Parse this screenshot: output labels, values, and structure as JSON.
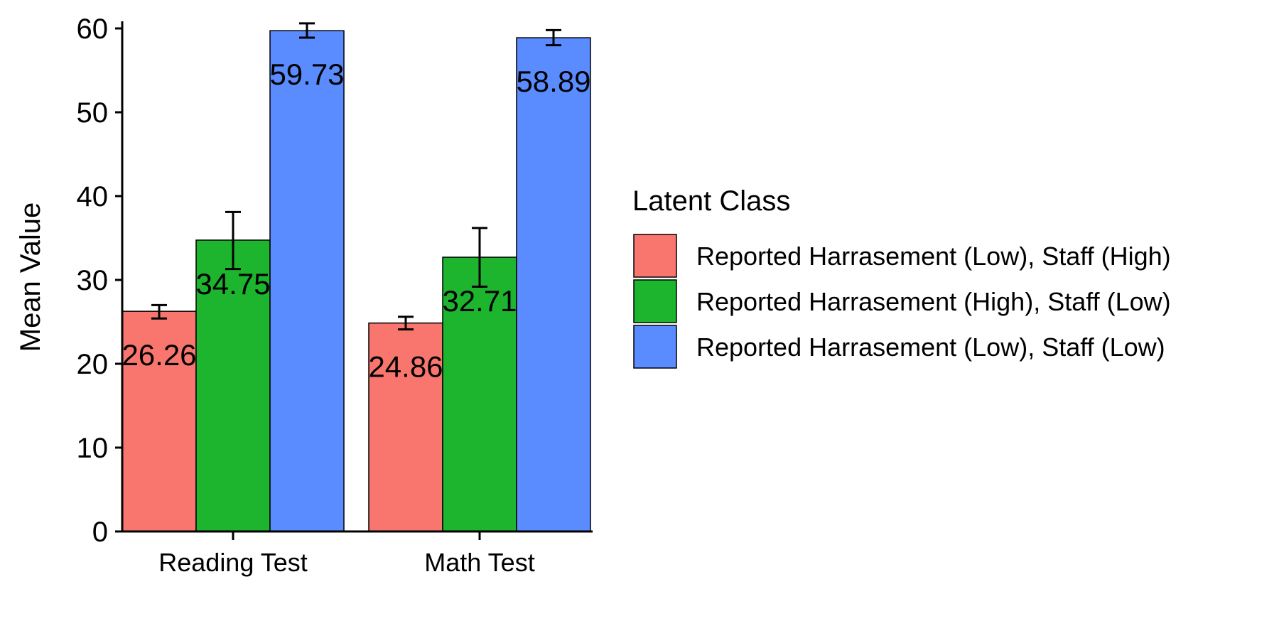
{
  "chart_data": {
    "type": "bar",
    "title": "",
    "xlabel": "",
    "ylabel": "Mean Value",
    "categories": [
      "Reading Test",
      "Math Test"
    ],
    "ylim": [
      0,
      60
    ],
    "yticks": [
      0,
      10,
      20,
      30,
      40,
      50,
      60
    ],
    "grid": false,
    "legend": {
      "title": "Latent Class",
      "placement": "right"
    },
    "series": [
      {
        "name": "Reported Harrasement (Low), Staff (High)",
        "color": "#F8766D",
        "values": [
          26.26,
          24.86
        ],
        "value_labels": [
          "26.26",
          "24.86"
        ],
        "error": [
          [
            25.4,
            27.0
          ],
          [
            24.1,
            25.6
          ]
        ]
      },
      {
        "name": "Reported Harrasement (High), Staff (Low)",
        "color": "#1DB42E",
        "values": [
          34.75,
          32.71
        ],
        "value_labels": [
          "34.75",
          "32.71"
        ],
        "error": [
          [
            31.3,
            38.1
          ],
          [
            29.2,
            36.2
          ]
        ]
      },
      {
        "name": "Reported Harrasement (Low), Staff (Low)",
        "color": "#5B8CFF",
        "values": [
          59.73,
          58.89
        ],
        "value_labels": [
          "59.73",
          "58.89"
        ],
        "error": [
          [
            58.9,
            60.6
          ],
          [
            58.0,
            59.8
          ]
        ]
      }
    ]
  }
}
